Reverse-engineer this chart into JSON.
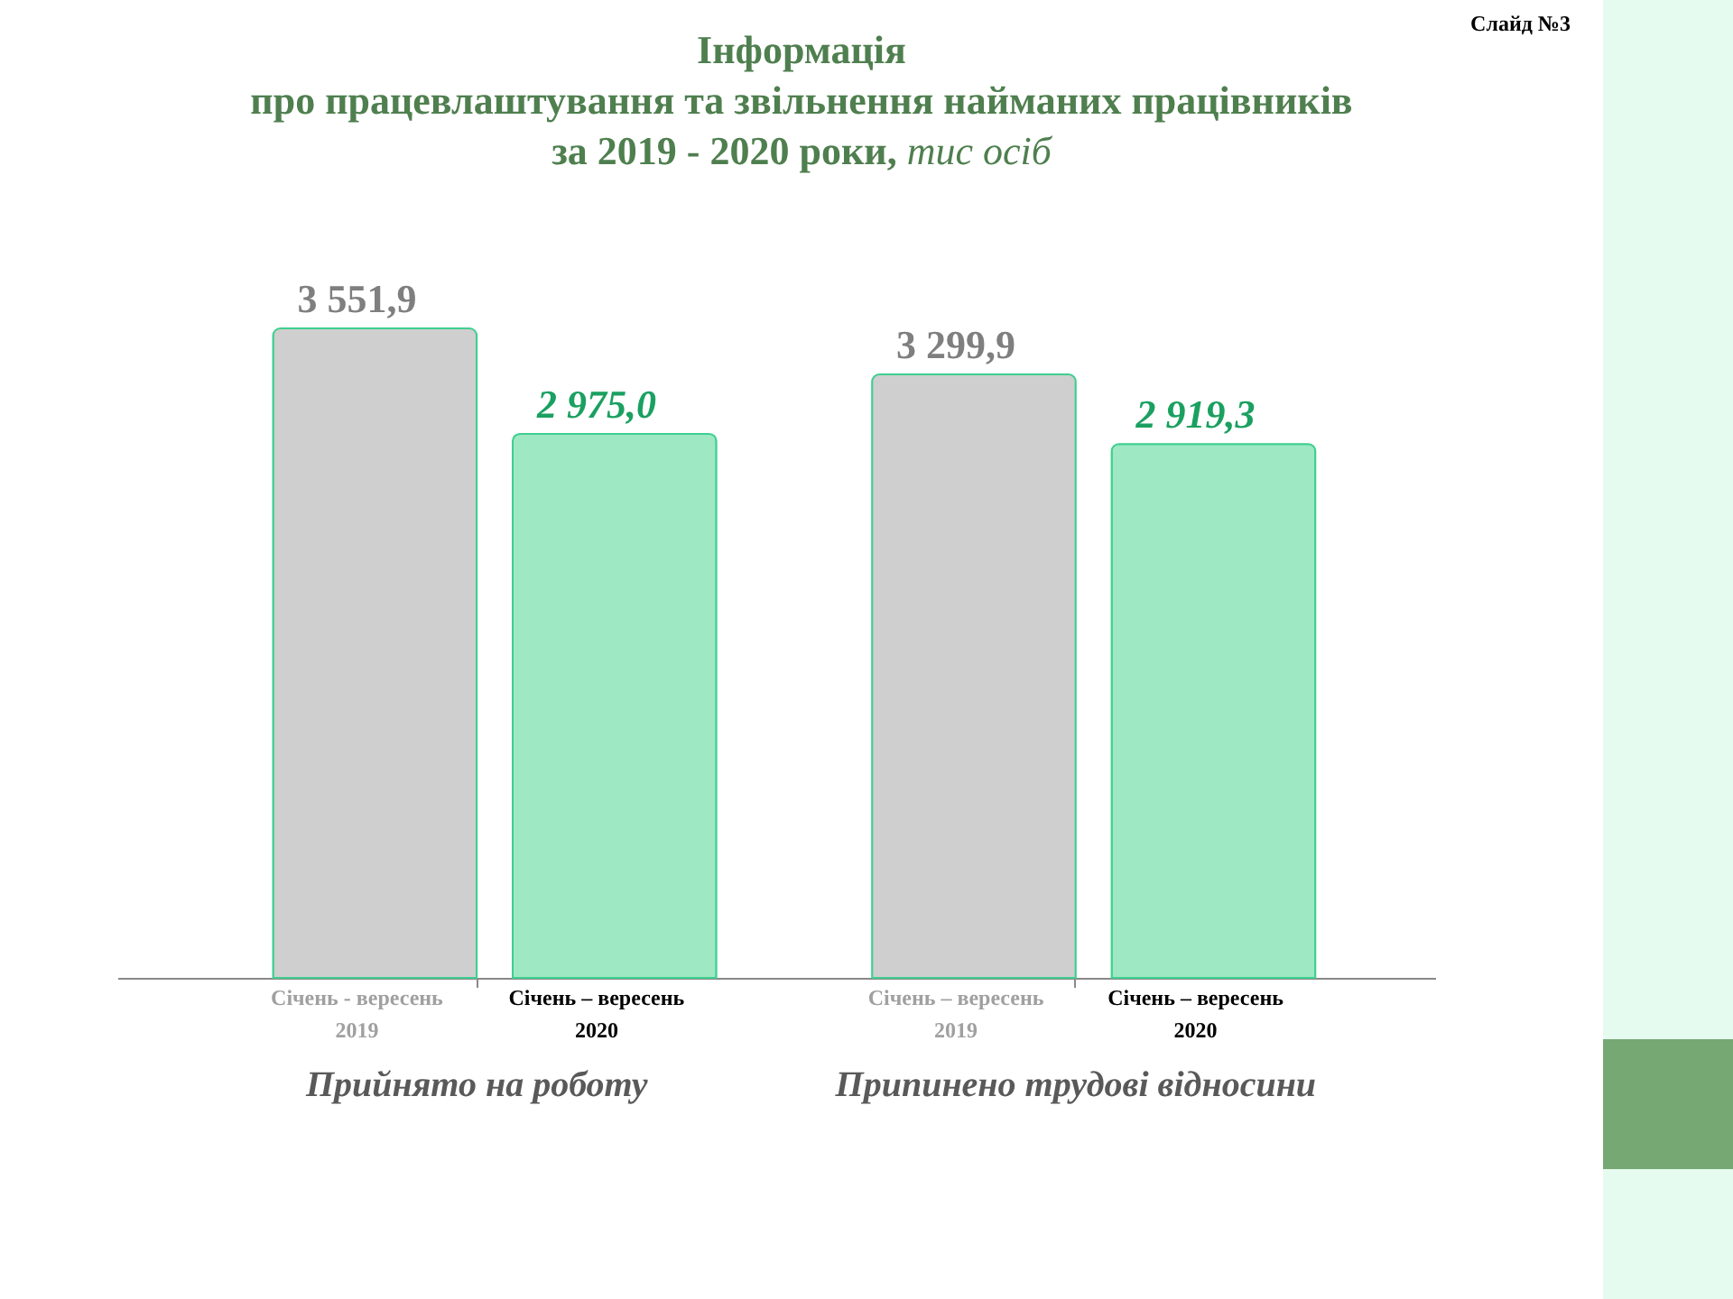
{
  "chart_data": {
    "type": "bar",
    "title": "Інформація\nпро працевлаштування та звільнення найманих працівників\nза 2019 - 2020 роки,",
    "subtitle": "тис осіб",
    "annotations": [
      "Слайд №3",
      {
        "text": "Січень – вересень 2019",
        "x": "Припинено трудові відносини",
        "y": 0
      },
      {
        "text": "Січень – вересень 2020",
        "x": "Припинено трудові відносини",
        "y": 0
      }
    ],
    "categories": [
      "Прийнято на роботу",
      "Припинено трудові відносини"
    ],
    "series": [
      {
        "name": "Січень - вересень 2019",
        "color": "#cfcfcf",
        "values": [
          3551.9,
          3299.9
        ],
        "value_labels": [
          "3 551,9",
          "3 299,9"
        ]
      },
      {
        "name": "Січень – вересень 2020",
        "color": "#9ee8c4",
        "values": [
          2975.0,
          2919.3
        ],
        "value_labels": [
          "2 975,0",
          "2 919,3"
        ]
      }
    ],
    "legend": false,
    "grid": false,
    "tick_labels": "x"
  }
}
